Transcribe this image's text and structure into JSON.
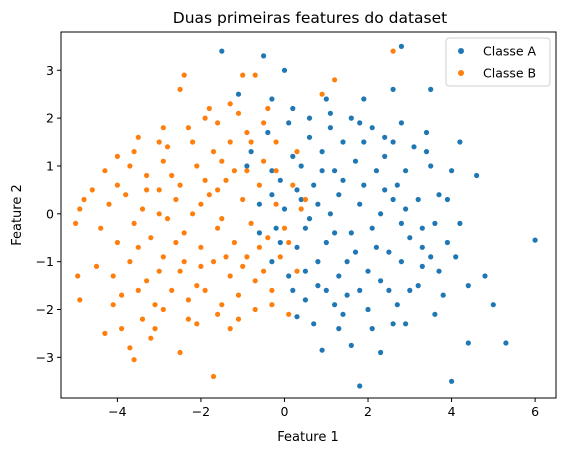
{
  "chart_data": {
    "type": "scatter",
    "title": "Duas primeiras features do dataset",
    "xlabel": "Feature 1",
    "ylabel": "Feature 2",
    "xlim": [
      -5.35,
      6.5
    ],
    "ylim": [
      -3.85,
      3.8
    ],
    "xticks": [
      -4,
      -2,
      0,
      2,
      4,
      6
    ],
    "yticks": [
      -3,
      -2,
      -1,
      0,
      1,
      2,
      3
    ],
    "grid": false,
    "legend_position": "top-right",
    "series": [
      {
        "name": "Classe A",
        "color": "#1f77b4",
        "points": [
          [
            -1.5,
            3.4
          ],
          [
            -0.5,
            3.3
          ],
          [
            0.0,
            3.0
          ],
          [
            2.8,
            3.5
          ],
          [
            3.5,
            2.6
          ],
          [
            2.6,
            2.6
          ],
          [
            1.9,
            2.4
          ],
          [
            1.0,
            2.4
          ],
          [
            0.2,
            2.2
          ],
          [
            -0.3,
            2.4
          ],
          [
            -1.1,
            2.5
          ],
          [
            2.8,
            1.9
          ],
          [
            3.4,
            1.7
          ],
          [
            4.2,
            1.5
          ],
          [
            4.6,
            0.8
          ],
          [
            6.0,
            -0.55
          ],
          [
            5.3,
            -2.7
          ],
          [
            5.0,
            -1.9
          ],
          [
            4.8,
            -1.3
          ],
          [
            4.4,
            -1.5
          ],
          [
            4.4,
            -2.7
          ],
          [
            4.0,
            -3.5
          ],
          [
            1.8,
            -3.6
          ],
          [
            0.9,
            -2.85
          ],
          [
            1.6,
            -2.75
          ],
          [
            2.3,
            -2.9
          ],
          [
            2.9,
            -2.3
          ],
          [
            3.6,
            -2.1
          ],
          [
            3.8,
            -1.7
          ],
          [
            1.3,
            -2.4
          ],
          [
            0.3,
            -2.15
          ],
          [
            0.5,
            -1.8
          ],
          [
            0.1,
            -1.3
          ],
          [
            0.8,
            -1.5
          ],
          [
            1.2,
            -1.9
          ],
          [
            2.0,
            -2.0
          ],
          [
            2.6,
            -2.3
          ],
          [
            3.0,
            -1.6
          ],
          [
            3.3,
            -1.1
          ],
          [
            3.9,
            -0.6
          ],
          [
            4.2,
            -0.2
          ],
          [
            3.9,
            0.3
          ],
          [
            3.5,
            1.0
          ],
          [
            3.1,
            1.4
          ],
          [
            2.4,
            1.6
          ],
          [
            1.8,
            1.9
          ],
          [
            1.1,
            1.8
          ],
          [
            0.6,
            1.6
          ],
          [
            0.1,
            1.9
          ],
          [
            -0.4,
            1.7
          ],
          [
            -0.8,
            1.3
          ],
          [
            -0.3,
            0.9
          ],
          [
            0.2,
            1.2
          ],
          [
            0.7,
            0.6
          ],
          [
            1.2,
            0.9
          ],
          [
            1.7,
            1.1
          ],
          [
            2.2,
            0.9
          ],
          [
            2.7,
            0.6
          ],
          [
            3.2,
            0.3
          ],
          [
            3.6,
            -0.2
          ],
          [
            3.0,
            -0.5
          ],
          [
            2.5,
            -0.8
          ],
          [
            2.0,
            -1.2
          ],
          [
            1.5,
            -1.0
          ],
          [
            1.0,
            -0.6
          ],
          [
            0.5,
            -0.3
          ],
          [
            0.0,
            0.1
          ],
          [
            -0.3,
            0.4
          ],
          [
            0.3,
            0.5
          ],
          [
            0.8,
            0.2
          ],
          [
            1.3,
            0.4
          ],
          [
            1.8,
            0.2
          ],
          [
            2.3,
            0.0
          ],
          [
            2.8,
            -0.2
          ],
          [
            3.3,
            -0.7
          ],
          [
            2.9,
            0.9
          ],
          [
            2.4,
            1.2
          ],
          [
            1.9,
            1.5
          ],
          [
            1.4,
            1.5
          ],
          [
            0.9,
            1.3
          ],
          [
            0.4,
            1.0
          ],
          [
            -0.1,
            0.7
          ],
          [
            -0.6,
            0.2
          ],
          [
            -0.2,
            -0.3
          ],
          [
            0.3,
            -0.7
          ],
          [
            0.8,
            -1.0
          ],
          [
            1.3,
            -1.3
          ],
          [
            1.8,
            -1.6
          ],
          [
            2.3,
            -1.4
          ],
          [
            2.8,
            -1.0
          ],
          [
            3.3,
            -0.3
          ],
          [
            3.7,
            0.4
          ],
          [
            4.0,
            0.9
          ],
          [
            3.4,
            1.3
          ],
          [
            2.6,
            1.5
          ],
          [
            2.1,
            1.8
          ],
          [
            1.6,
            2.0
          ],
          [
            1.1,
            2.1
          ],
          [
            0.6,
            2.0
          ],
          [
            -0.9,
            1.0
          ],
          [
            -0.6,
            -0.4
          ],
          [
            -0.3,
            -1.0
          ],
          [
            0.2,
            -1.6
          ],
          [
            0.7,
            -2.3
          ],
          [
            1.4,
            -2.1
          ],
          [
            2.1,
            -2.4
          ],
          [
            2.7,
            -1.9
          ],
          [
            3.2,
            -1.5
          ],
          [
            3.7,
            -1.2
          ],
          [
            4.1,
            -0.9
          ],
          [
            1.6,
            -0.4
          ],
          [
            2.1,
            -0.3
          ],
          [
            2.6,
            0.3
          ],
          [
            1.1,
            0.0
          ],
          [
            0.6,
            -0.1
          ],
          [
            1.4,
            0.7
          ],
          [
            1.9,
            0.6
          ],
          [
            2.4,
            0.5
          ],
          [
            2.9,
            0.1
          ],
          [
            1.7,
            -0.8
          ],
          [
            1.2,
            -0.4
          ],
          [
            2.2,
            -0.7
          ],
          [
            0.9,
            0.9
          ],
          [
            0.4,
            0.3
          ],
          [
            -0.1,
            -0.6
          ],
          [
            0.5,
            -1.2
          ],
          [
            1.0,
            -1.6
          ],
          [
            1.5,
            -1.7
          ],
          [
            2.5,
            -1.6
          ],
          [
            3.5,
            -0.9
          ]
        ]
      },
      {
        "name": "Classe B",
        "color": "#ff7f0e",
        "points": [
          [
            -2.4,
            2.9
          ],
          [
            -1.0,
            2.9
          ],
          [
            -0.7,
            2.9
          ],
          [
            1.2,
            2.8
          ],
          [
            2.6,
            3.4
          ],
          [
            -2.5,
            2.6
          ],
          [
            -1.8,
            2.2
          ],
          [
            -1.3,
            2.3
          ],
          [
            -0.4,
            2.2
          ],
          [
            0.9,
            2.5
          ],
          [
            -3.5,
            1.6
          ],
          [
            -3.0,
            1.5
          ],
          [
            -2.3,
            1.8
          ],
          [
            -1.6,
            1.9
          ],
          [
            -0.9,
            1.7
          ],
          [
            -0.2,
            1.5
          ],
          [
            0.3,
            1.3
          ],
          [
            -4.8,
            0.3
          ],
          [
            -4.9,
            0.1
          ],
          [
            -5.0,
            -0.2
          ],
          [
            -4.95,
            -1.3
          ],
          [
            -4.9,
            -1.8
          ],
          [
            -4.5,
            -1.1
          ],
          [
            -4.1,
            -1.9
          ],
          [
            -3.9,
            -2.4
          ],
          [
            -3.7,
            -2.8
          ],
          [
            -3.6,
            -3.05
          ],
          [
            -3.2,
            -2.6
          ],
          [
            -2.5,
            -2.9
          ],
          [
            -1.7,
            -3.4
          ],
          [
            -4.3,
            -2.5
          ],
          [
            -3.4,
            -2.2
          ],
          [
            -2.9,
            -2.0
          ],
          [
            -2.3,
            -2.2
          ],
          [
            -1.6,
            -2.1
          ],
          [
            -1.1,
            -2.2
          ],
          [
            -0.7,
            -2.0
          ],
          [
            -0.3,
            -1.6
          ],
          [
            0.1,
            -2.1
          ],
          [
            0.3,
            -1.2
          ],
          [
            -4.3,
            0.9
          ],
          [
            -4.0,
            1.2
          ],
          [
            -3.7,
            1.0
          ],
          [
            -3.3,
            0.8
          ],
          [
            -2.9,
            1.1
          ],
          [
            -2.5,
            0.6
          ],
          [
            -2.1,
            1.0
          ],
          [
            -1.7,
            1.3
          ],
          [
            -1.3,
            1.5
          ],
          [
            -0.9,
            0.9
          ],
          [
            -0.5,
            1.1
          ],
          [
            -4.6,
            0.5
          ],
          [
            -4.2,
            0.2
          ],
          [
            -3.8,
            0.4
          ],
          [
            -3.4,
            0.1
          ],
          [
            -3.0,
            0.5
          ],
          [
            -2.6,
            0.3
          ],
          [
            -2.2,
            0.0
          ],
          [
            -1.8,
            0.4
          ],
          [
            -1.4,
            0.7
          ],
          [
            -1.0,
            0.3
          ],
          [
            -0.6,
            0.6
          ],
          [
            -0.2,
            0.2
          ],
          [
            0.2,
            0.6
          ],
          [
            -4.4,
            -0.3
          ],
          [
            -4.0,
            -0.6
          ],
          [
            -3.6,
            -0.2
          ],
          [
            -3.2,
            -0.5
          ],
          [
            -2.8,
            -0.1
          ],
          [
            -2.4,
            -0.4
          ],
          [
            -2.0,
            -0.7
          ],
          [
            -1.6,
            -0.3
          ],
          [
            -1.2,
            -0.6
          ],
          [
            -0.8,
            -0.2
          ],
          [
            -0.4,
            -0.5
          ],
          [
            0.0,
            -0.3
          ],
          [
            -4.1,
            -1.3
          ],
          [
            -3.7,
            -1.0
          ],
          [
            -3.3,
            -1.4
          ],
          [
            -2.9,
            -0.9
          ],
          [
            -2.5,
            -1.2
          ],
          [
            -2.1,
            -1.5
          ],
          [
            -1.7,
            -1.0
          ],
          [
            -1.3,
            -1.3
          ],
          [
            -0.9,
            -0.9
          ],
          [
            -0.5,
            -1.2
          ],
          [
            -0.1,
            -0.9
          ],
          [
            -3.9,
            -1.7
          ],
          [
            -3.5,
            -1.6
          ],
          [
            -3.1,
            -1.9
          ],
          [
            -2.7,
            -1.6
          ],
          [
            -2.3,
            -1.8
          ],
          [
            -1.9,
            -1.6
          ],
          [
            -1.5,
            -1.9
          ],
          [
            -1.1,
            -1.7
          ],
          [
            -0.7,
            -1.4
          ],
          [
            -3.0,
            0.0
          ],
          [
            -2.0,
            0.2
          ],
          [
            -1.5,
            -0.1
          ],
          [
            -2.6,
            -0.6
          ],
          [
            -1.9,
            0.7
          ],
          [
            -1.2,
            0.9
          ],
          [
            -2.8,
            1.4
          ],
          [
            -2.2,
            1.5
          ],
          [
            -1.5,
            1.1
          ],
          [
            -0.8,
            1.5
          ],
          [
            -3.6,
            1.3
          ],
          [
            -4.0,
            0.6
          ],
          [
            -3.5,
            -0.7
          ],
          [
            -2.4,
            -1.0
          ],
          [
            -1.4,
            -0.9
          ],
          [
            -0.6,
            -0.7
          ],
          [
            -0.2,
            0.9
          ],
          [
            0.4,
            0.1
          ],
          [
            -1.0,
            -1.1
          ],
          [
            -2.0,
            -1.1
          ],
          [
            -3.0,
            -1.2
          ],
          [
            -1.6,
            0.5
          ],
          [
            -2.7,
            0.8
          ],
          [
            -3.3,
            0.5
          ],
          [
            -0.3,
            -1.9
          ],
          [
            -1.3,
            -2.4
          ],
          [
            -2.1,
            -2.3
          ],
          [
            -3.1,
            -2.4
          ],
          [
            -1.9,
            2.0
          ],
          [
            -0.5,
            1.9
          ],
          [
            -2.9,
            1.8
          ],
          [
            -1.1,
            2.1
          ],
          [
            0.5,
            0.3
          ],
          [
            0.1,
            -0.6
          ]
        ]
      }
    ]
  }
}
